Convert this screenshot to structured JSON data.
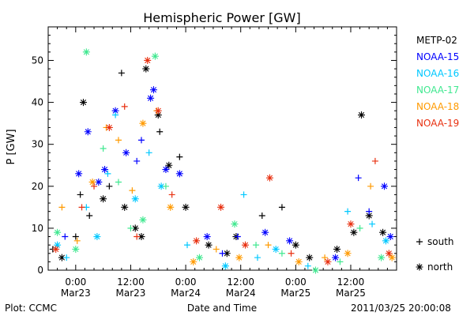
{
  "chart_data": {
    "type": "scatter",
    "title": "Hemispheric Power [GW]",
    "xlabel": "Date and Time",
    "ylabel": "P [GW]",
    "xlim": [
      "2011-03-22 18:00",
      "2011-03-25 22:00"
    ],
    "ylim": [
      0,
      58
    ],
    "grid": false,
    "x_ticks": [
      {
        "x": "2011-03-23 00:00",
        "time": "0:00",
        "date": "Mar23"
      },
      {
        "x": "2011-03-23 12:00",
        "time": "12:00",
        "date": "Mar23"
      },
      {
        "x": "2011-03-24 00:00",
        "time": "0:00",
        "date": "Mar24"
      },
      {
        "x": "2011-03-24 12:00",
        "time": "12:00",
        "date": "Mar24"
      },
      {
        "x": "2011-03-25 00:00",
        "time": "0:00",
        "date": "Mar25"
      },
      {
        "x": "2011-03-25 12:00",
        "time": "12:00",
        "date": "Mar25"
      }
    ],
    "y_ticks": [
      0,
      10,
      20,
      30,
      40,
      50
    ],
    "legend_position": "right",
    "marker_legend": [
      {
        "marker": "+",
        "label": "south"
      },
      {
        "marker": "*",
        "label": "north"
      }
    ],
    "series": [
      {
        "name": "METP-02",
        "color": "#000000",
        "points": [
          [
            "2011-03-22 19:00",
            5,
            "+"
          ],
          [
            "2011-03-22 21:00",
            3,
            "*"
          ],
          [
            "2011-03-23 00:00",
            8,
            "+"
          ],
          [
            "2011-03-23 01:00",
            18,
            "+"
          ],
          [
            "2011-03-23 01:40",
            40,
            "*"
          ],
          [
            "2011-03-23 03:00",
            13,
            "+"
          ],
          [
            "2011-03-23 06:00",
            17,
            "*"
          ],
          [
            "2011-03-23 07:20",
            20,
            "+"
          ],
          [
            "2011-03-23 10:00",
            47,
            "+"
          ],
          [
            "2011-03-23 10:40",
            15,
            "*"
          ],
          [
            "2011-03-23 13:00",
            10,
            "*"
          ],
          [
            "2011-03-23 14:20",
            8,
            "*"
          ],
          [
            "2011-03-23 15:20",
            48,
            "*"
          ],
          [
            "2011-03-23 18:00",
            37,
            "*"
          ],
          [
            "2011-03-23 18:20",
            33,
            "+"
          ],
          [
            "2011-03-23 20:20",
            25,
            "*"
          ],
          [
            "2011-03-23 22:40",
            27,
            "+"
          ],
          [
            "2011-03-24 00:00",
            15,
            "*"
          ],
          [
            "2011-03-24 05:00",
            6,
            "*"
          ],
          [
            "2011-03-24 09:00",
            4,
            "*"
          ],
          [
            "2011-03-24 11:00",
            8,
            "*"
          ],
          [
            "2011-03-24 16:40",
            13,
            "+"
          ],
          [
            "2011-03-24 21:00",
            15,
            "+"
          ],
          [
            "2011-03-25 00:00",
            6,
            "*"
          ],
          [
            "2011-03-25 03:00",
            3,
            "*"
          ],
          [
            "2011-03-25 09:00",
            5,
            "*"
          ],
          [
            "2011-03-25 12:40",
            9,
            "*"
          ],
          [
            "2011-03-25 14:20",
            37,
            "*"
          ],
          [
            "2011-03-25 16:00",
            13,
            "*"
          ],
          [
            "2011-03-25 19:00",
            9,
            "*"
          ]
        ]
      },
      {
        "name": "NOAA-15",
        "color": "#0000ff",
        "points": [
          [
            "2011-03-22 21:40",
            8,
            "+"
          ],
          [
            "2011-03-23 00:40",
            23,
            "*"
          ],
          [
            "2011-03-23 02:40",
            33,
            "*"
          ],
          [
            "2011-03-23 05:00",
            21,
            "*"
          ],
          [
            "2011-03-23 06:20",
            24,
            "*"
          ],
          [
            "2011-03-23 08:40",
            38,
            "*"
          ],
          [
            "2011-03-23 11:00",
            28,
            "*"
          ],
          [
            "2011-03-23 13:20",
            26,
            "+"
          ],
          [
            "2011-03-23 14:20",
            31,
            "+"
          ],
          [
            "2011-03-23 16:20",
            41,
            "*"
          ],
          [
            "2011-03-23 17:00",
            43,
            "*"
          ],
          [
            "2011-03-23 19:40",
            24,
            "*"
          ],
          [
            "2011-03-23 22:40",
            23,
            "*"
          ],
          [
            "2011-03-24 04:40",
            8,
            "*"
          ],
          [
            "2011-03-24 08:00",
            4,
            "+"
          ],
          [
            "2011-03-24 11:20",
            8,
            "+"
          ],
          [
            "2011-03-24 17:20",
            9,
            "*"
          ],
          [
            "2011-03-24 22:40",
            7,
            "*"
          ],
          [
            "2011-03-25 08:40",
            3,
            "*"
          ],
          [
            "2011-03-25 13:40",
            22,
            "+"
          ],
          [
            "2011-03-25 16:00",
            14,
            "+"
          ],
          [
            "2011-03-25 19:20",
            20,
            "*"
          ],
          [
            "2011-03-25 20:40",
            8,
            "*"
          ]
        ]
      },
      {
        "name": "NOAA-16",
        "color": "#00c8ff",
        "points": [
          [
            "2011-03-22 20:00",
            6,
            "*"
          ],
          [
            "2011-03-22 22:00",
            3,
            "+"
          ],
          [
            "2011-03-23 02:20",
            15,
            "+"
          ],
          [
            "2011-03-23 04:40",
            8,
            "*"
          ],
          [
            "2011-03-23 07:00",
            23,
            "+"
          ],
          [
            "2011-03-23 08:40",
            37,
            "+"
          ],
          [
            "2011-03-23 13:00",
            17,
            "*"
          ],
          [
            "2011-03-23 16:00",
            28,
            "+"
          ],
          [
            "2011-03-23 18:40",
            20,
            "*"
          ],
          [
            "2011-03-24 00:20",
            6,
            "+"
          ],
          [
            "2011-03-24 08:40",
            1,
            "*"
          ],
          [
            "2011-03-24 12:40",
            18,
            "+"
          ],
          [
            "2011-03-24 15:40",
            3,
            "+"
          ],
          [
            "2011-03-24 19:40",
            5,
            "*"
          ],
          [
            "2011-03-25 02:40",
            1,
            "+"
          ],
          [
            "2011-03-25 11:20",
            14,
            "+"
          ],
          [
            "2011-03-25 16:40",
            11,
            "+"
          ],
          [
            "2011-03-25 19:40",
            7,
            "*"
          ]
        ]
      },
      {
        "name": "NOAA-17",
        "color": "#40e890",
        "points": [
          [
            "2011-03-22 20:00",
            9,
            "*"
          ],
          [
            "2011-03-23 00:00",
            5,
            "*"
          ],
          [
            "2011-03-23 02:20",
            52,
            "*"
          ],
          [
            "2011-03-23 06:00",
            29,
            "+"
          ],
          [
            "2011-03-23 09:20",
            21,
            "+"
          ],
          [
            "2011-03-23 12:00",
            10,
            "+"
          ],
          [
            "2011-03-23 14:40",
            12,
            "*"
          ],
          [
            "2011-03-23 17:20",
            51,
            "*"
          ],
          [
            "2011-03-23 19:40",
            20,
            "+"
          ],
          [
            "2011-03-24 03:00",
            3,
            "*"
          ],
          [
            "2011-03-24 10:40",
            11,
            "*"
          ],
          [
            "2011-03-24 15:20",
            6,
            "+"
          ],
          [
            "2011-03-24 21:00",
            4,
            "+"
          ],
          [
            "2011-03-25 04:20",
            0,
            "*"
          ],
          [
            "2011-03-25 09:40",
            2,
            "+"
          ],
          [
            "2011-03-25 14:00",
            10,
            "+"
          ],
          [
            "2011-03-25 18:40",
            3,
            "*"
          ]
        ]
      },
      {
        "name": "NOAA-18",
        "color": "#ff9a00",
        "points": [
          [
            "2011-03-22 21:00",
            15,
            "+"
          ],
          [
            "2011-03-23 00:20",
            7,
            "+"
          ],
          [
            "2011-03-23 03:40",
            21,
            "*"
          ],
          [
            "2011-03-23 06:40",
            34,
            "+"
          ],
          [
            "2011-03-23 09:20",
            31,
            "+"
          ],
          [
            "2011-03-23 12:20",
            19,
            "+"
          ],
          [
            "2011-03-23 14:40",
            35,
            "*"
          ],
          [
            "2011-03-23 17:40",
            38,
            "+"
          ],
          [
            "2011-03-23 20:40",
            15,
            "*"
          ],
          [
            "2011-03-24 01:40",
            2,
            "*"
          ],
          [
            "2011-03-24 06:40",
            5,
            "+"
          ],
          [
            "2011-03-24 11:40",
            3,
            "*"
          ],
          [
            "2011-03-24 18:00",
            6,
            "+"
          ],
          [
            "2011-03-25 00:40",
            2,
            "*"
          ],
          [
            "2011-03-25 06:20",
            3,
            "+"
          ],
          [
            "2011-03-25 11:20",
            4,
            "*"
          ],
          [
            "2011-03-25 16:20",
            20,
            "+"
          ],
          [
            "2011-03-25 21:00",
            3,
            "*"
          ]
        ]
      },
      {
        "name": "NOAA-19",
        "color": "#e83010",
        "points": [
          [
            "2011-03-22 19:40",
            5,
            "*"
          ],
          [
            "2011-03-23 01:20",
            15,
            "+"
          ],
          [
            "2011-03-23 04:00",
            20,
            "+"
          ],
          [
            "2011-03-23 07:20",
            34,
            "*"
          ],
          [
            "2011-03-23 10:40",
            39,
            "+"
          ],
          [
            "2011-03-23 13:20",
            8,
            "+"
          ],
          [
            "2011-03-23 15:40",
            50,
            "*"
          ],
          [
            "2011-03-23 18:00",
            38,
            "*"
          ],
          [
            "2011-03-23 21:00",
            18,
            "+"
          ],
          [
            "2011-03-24 02:20",
            7,
            "*"
          ],
          [
            "2011-03-24 07:40",
            15,
            "*"
          ],
          [
            "2011-03-24 13:00",
            6,
            "*"
          ],
          [
            "2011-03-24 18:20",
            22,
            "*"
          ],
          [
            "2011-03-24 23:00",
            4,
            "+"
          ],
          [
            "2011-03-25 07:00",
            2,
            "*"
          ],
          [
            "2011-03-25 12:00",
            11,
            "*"
          ],
          [
            "2011-03-25 17:20",
            26,
            "+"
          ],
          [
            "2011-03-25 20:20",
            4,
            "*"
          ]
        ]
      }
    ]
  },
  "footer": {
    "plot_credit": "Plot: CCMC",
    "timestamp": "2011/03/25 20:00:08"
  }
}
